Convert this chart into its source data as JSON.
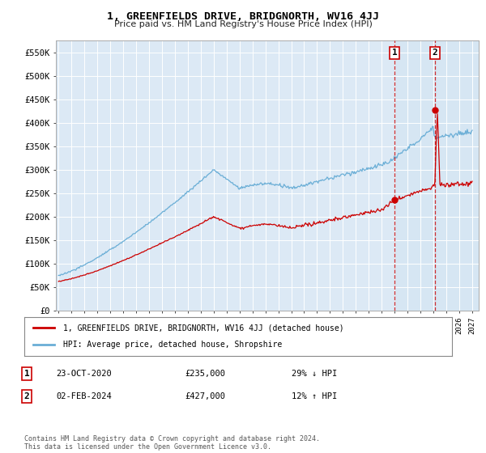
{
  "title": "1, GREENFIELDS DRIVE, BRIDGNORTH, WV16 4JJ",
  "subtitle": "Price paid vs. HM Land Registry's House Price Index (HPI)",
  "hpi_color": "#6aaed6",
  "price_color": "#cc0000",
  "ylim": [
    0,
    575000
  ],
  "yticks": [
    0,
    50000,
    100000,
    150000,
    200000,
    250000,
    300000,
    350000,
    400000,
    450000,
    500000,
    550000
  ],
  "legend_entries": [
    "1, GREENFIELDS DRIVE, BRIDGNORTH, WV16 4JJ (detached house)",
    "HPI: Average price, detached house, Shropshire"
  ],
  "annotation1": {
    "num": "1",
    "date": "23-OCT-2020",
    "price": "£235,000",
    "hpi": "29% ↓ HPI"
  },
  "annotation2": {
    "num": "2",
    "date": "02-FEB-2024",
    "price": "£427,000",
    "hpi": "12% ↑ HPI"
  },
  "footer": "Contains HM Land Registry data © Crown copyright and database right 2024.\nThis data is licensed under the Open Government Licence v3.0.",
  "plot_bg": "#dce9f5",
  "fig_bg": "#ffffff",
  "grid_color": "#ffffff",
  "marker1_x": 2021.0,
  "marker2_x": 2024.1,
  "marker1_y": 235000,
  "marker2_y": 427000,
  "shade_start": 2021.0,
  "shade_end": 2027.5,
  "xlim_left": 1994.8,
  "xlim_right": 2027.5
}
